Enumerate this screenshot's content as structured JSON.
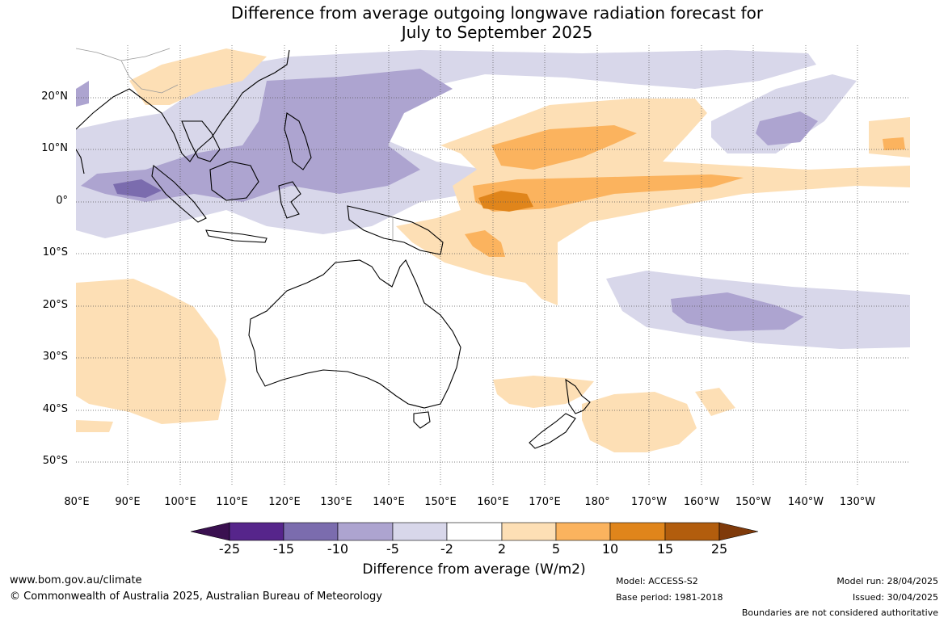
{
  "title_line1": "Difference from average outgoing longwave radiation forecast for",
  "title_line2": "July to September 2025",
  "lat_labels": [
    "20°N",
    "10°N",
    "0°",
    "10°S",
    "20°S",
    "30°S",
    "40°S",
    "50°S"
  ],
  "lon_labels": [
    "80°E",
    "90°E",
    "100°E",
    "110°E",
    "120°E",
    "130°E",
    "140°E",
    "150°E",
    "160°E",
    "170°E",
    "180°",
    "170°W",
    "160°W",
    "150°W",
    "140°W",
    "130°W"
  ],
  "colorbar": {
    "title": "Difference from average (W/m2)",
    "ticks": [
      "-25",
      "-15",
      "-10",
      "-5",
      "-2",
      "2",
      "5",
      "10",
      "15",
      "25"
    ],
    "colors": [
      "#3a1050",
      "#56258b",
      "#7b6cae",
      "#ada4d0",
      "#d8d7ea",
      "#ffffff",
      "#fddfb5",
      "#fbb35e",
      "#e0851b",
      "#b25d0d",
      "#7f3a0a"
    ]
  },
  "footer": {
    "website": "www.bom.gov.au/climate",
    "copyright": "© Commonwealth of Australia 2025, Australian Bureau of Meteorology",
    "model": "Model: ACCESS-S2",
    "base_period": "Base period: 1981-2018",
    "model_run": "Model run: 28/04/2025",
    "issued": "Issued: 30/04/2025",
    "disclaimer": "Boundaries are not considered authoritative"
  }
}
